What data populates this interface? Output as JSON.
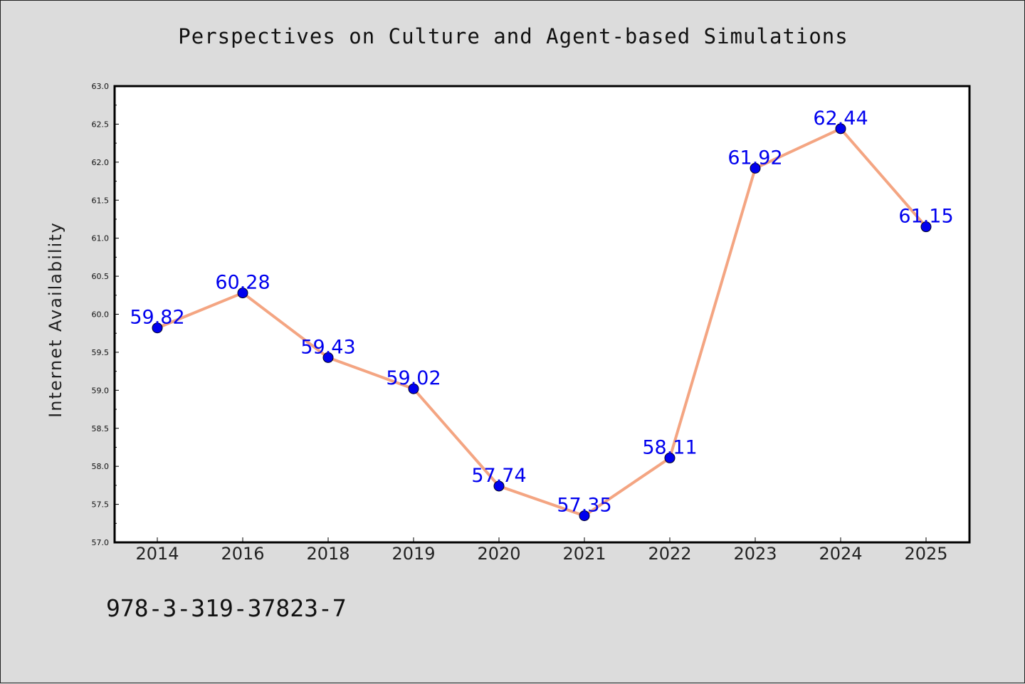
{
  "chart_data": {
    "type": "line",
    "title": "Perspectives on Culture and Agent-based Simulations",
    "xlabel": "",
    "ylabel": "Internet Availability",
    "categories": [
      "2014",
      "2016",
      "2018",
      "2019",
      "2020",
      "2021",
      "2022",
      "2023",
      "2024",
      "2025"
    ],
    "series": [
      {
        "values": [
          59.82,
          60.28,
          59.43,
          59.02,
          57.74,
          57.35,
          58.11,
          61.92,
          62.44,
          61.15
        ],
        "line_color": "#f4a582",
        "marker_color": "#0000ee",
        "labels": [
          "59.82",
          "60.28",
          "59.43",
          "59.02",
          "57.74",
          "57.35",
          "58.11",
          "61.92",
          "62.44",
          "61.15"
        ]
      }
    ],
    "ylim": [
      57.0,
      63.0
    ],
    "yticks": [
      "57.0",
      "57.5",
      "58.0",
      "58.5",
      "59.0",
      "59.5",
      "60.0",
      "60.5",
      "61.0",
      "61.5",
      "62.0",
      "62.5",
      "63.0"
    ],
    "grid": false,
    "legend": "none"
  },
  "footer": {
    "isbn": "978-3-319-37823-7"
  },
  "colors": {
    "background": "#dcdcdc",
    "plot_area": "#ffffff",
    "line": "#f4a582",
    "marker": "#0000ee",
    "label": "#0000ee"
  }
}
